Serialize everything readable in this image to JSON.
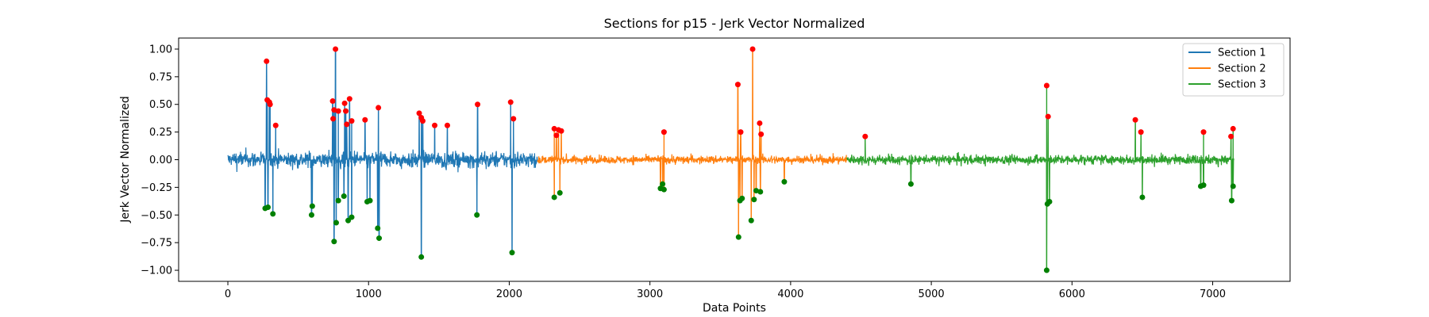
{
  "chart_data": {
    "type": "line",
    "title": "Sections for p15 - Jerk Vector Normalized",
    "xlabel": "Data Points",
    "ylabel": "Jerk Vector Normalized",
    "xlim": [
      -350,
      7550
    ],
    "ylim": [
      -1.1,
      1.1
    ],
    "xticks": [
      0,
      1000,
      2000,
      3000,
      4000,
      5000,
      6000,
      7000
    ],
    "xtick_labels": [
      "0",
      "1000",
      "2000",
      "3000",
      "4000",
      "5000",
      "6000",
      "7000"
    ],
    "yticks": [
      -1.0,
      -0.75,
      -0.5,
      -0.25,
      0.0,
      0.25,
      0.5,
      0.75,
      1.0
    ],
    "ytick_labels": [
      "−1.00",
      "−0.75",
      "−0.50",
      "−0.25",
      "0.00",
      "0.25",
      "0.50",
      "0.75",
      "1.00"
    ],
    "grid": false,
    "legend_position": "top-right",
    "series": [
      {
        "name": "Section 1",
        "color": "#1f77b4",
        "x_range": [
          0,
          2200
        ],
        "noise_amplitude": 0.12
      },
      {
        "name": "Section 2",
        "color": "#ff7f0e",
        "x_range": [
          2200,
          4400
        ],
        "noise_amplitude": 0.06
      },
      {
        "name": "Section 3",
        "color": "#2ca02c",
        "x_range": [
          4400,
          7150
        ],
        "noise_amplitude": 0.07
      }
    ],
    "peaks": [
      {
        "x": 275,
        "y": 0.89
      },
      {
        "x": 280,
        "y": 0.54
      },
      {
        "x": 295,
        "y": 0.52
      },
      {
        "x": 300,
        "y": 0.5
      },
      {
        "x": 340,
        "y": 0.31
      },
      {
        "x": 745,
        "y": 0.53
      },
      {
        "x": 748,
        "y": 0.37
      },
      {
        "x": 755,
        "y": 0.45
      },
      {
        "x": 765,
        "y": 1.0
      },
      {
        "x": 785,
        "y": 0.44
      },
      {
        "x": 830,
        "y": 0.51
      },
      {
        "x": 838,
        "y": 0.44
      },
      {
        "x": 845,
        "y": 0.32
      },
      {
        "x": 865,
        "y": 0.55
      },
      {
        "x": 880,
        "y": 0.35
      },
      {
        "x": 975,
        "y": 0.36
      },
      {
        "x": 1070,
        "y": 0.47
      },
      {
        "x": 1360,
        "y": 0.42
      },
      {
        "x": 1375,
        "y": 0.38
      },
      {
        "x": 1385,
        "y": 0.35
      },
      {
        "x": 1470,
        "y": 0.31
      },
      {
        "x": 1560,
        "y": 0.31
      },
      {
        "x": 1775,
        "y": 0.5
      },
      {
        "x": 2010,
        "y": 0.52
      },
      {
        "x": 2030,
        "y": 0.37
      },
      {
        "x": 2320,
        "y": 0.28
      },
      {
        "x": 2335,
        "y": 0.22
      },
      {
        "x": 2350,
        "y": 0.27
      },
      {
        "x": 2370,
        "y": 0.26
      },
      {
        "x": 3100,
        "y": 0.25
      },
      {
        "x": 3625,
        "y": 0.68
      },
      {
        "x": 3645,
        "y": 0.25
      },
      {
        "x": 3730,
        "y": 1.0
      },
      {
        "x": 3780,
        "y": 0.33
      },
      {
        "x": 3790,
        "y": 0.23
      },
      {
        "x": 4530,
        "y": 0.21
      },
      {
        "x": 5820,
        "y": 0.67
      },
      {
        "x": 5830,
        "y": 0.39
      },
      {
        "x": 6450,
        "y": 0.36
      },
      {
        "x": 6490,
        "y": 0.25
      },
      {
        "x": 6935,
        "y": 0.25
      },
      {
        "x": 7130,
        "y": 0.21
      },
      {
        "x": 7145,
        "y": 0.28
      }
    ],
    "troughs": [
      {
        "x": 265,
        "y": -0.44
      },
      {
        "x": 285,
        "y": -0.43
      },
      {
        "x": 320,
        "y": -0.49
      },
      {
        "x": 595,
        "y": -0.5
      },
      {
        "x": 600,
        "y": -0.42
      },
      {
        "x": 755,
        "y": -0.74
      },
      {
        "x": 770,
        "y": -0.57
      },
      {
        "x": 785,
        "y": -0.37
      },
      {
        "x": 825,
        "y": -0.33
      },
      {
        "x": 855,
        "y": -0.55
      },
      {
        "x": 880,
        "y": -0.52
      },
      {
        "x": 990,
        "y": -0.38
      },
      {
        "x": 1010,
        "y": -0.37
      },
      {
        "x": 1065,
        "y": -0.62
      },
      {
        "x": 1075,
        "y": -0.71
      },
      {
        "x": 1375,
        "y": -0.88
      },
      {
        "x": 1770,
        "y": -0.5
      },
      {
        "x": 2020,
        "y": -0.84
      },
      {
        "x": 2320,
        "y": -0.34
      },
      {
        "x": 2360,
        "y": -0.3
      },
      {
        "x": 3075,
        "y": -0.26
      },
      {
        "x": 3090,
        "y": -0.22
      },
      {
        "x": 3100,
        "y": -0.27
      },
      {
        "x": 3630,
        "y": -0.7
      },
      {
        "x": 3640,
        "y": -0.37
      },
      {
        "x": 3655,
        "y": -0.35
      },
      {
        "x": 3720,
        "y": -0.55
      },
      {
        "x": 3740,
        "y": -0.36
      },
      {
        "x": 3755,
        "y": -0.28
      },
      {
        "x": 3785,
        "y": -0.29
      },
      {
        "x": 3955,
        "y": -0.2
      },
      {
        "x": 4855,
        "y": -0.22
      },
      {
        "x": 5820,
        "y": -1.0
      },
      {
        "x": 5825,
        "y": -0.4
      },
      {
        "x": 5840,
        "y": -0.38
      },
      {
        "x": 6500,
        "y": -0.34
      },
      {
        "x": 6915,
        "y": -0.24
      },
      {
        "x": 6935,
        "y": -0.23
      },
      {
        "x": 7135,
        "y": -0.37
      },
      {
        "x": 7145,
        "y": -0.24
      }
    ],
    "peak_color": "#ff0000",
    "trough_color": "#008000"
  }
}
